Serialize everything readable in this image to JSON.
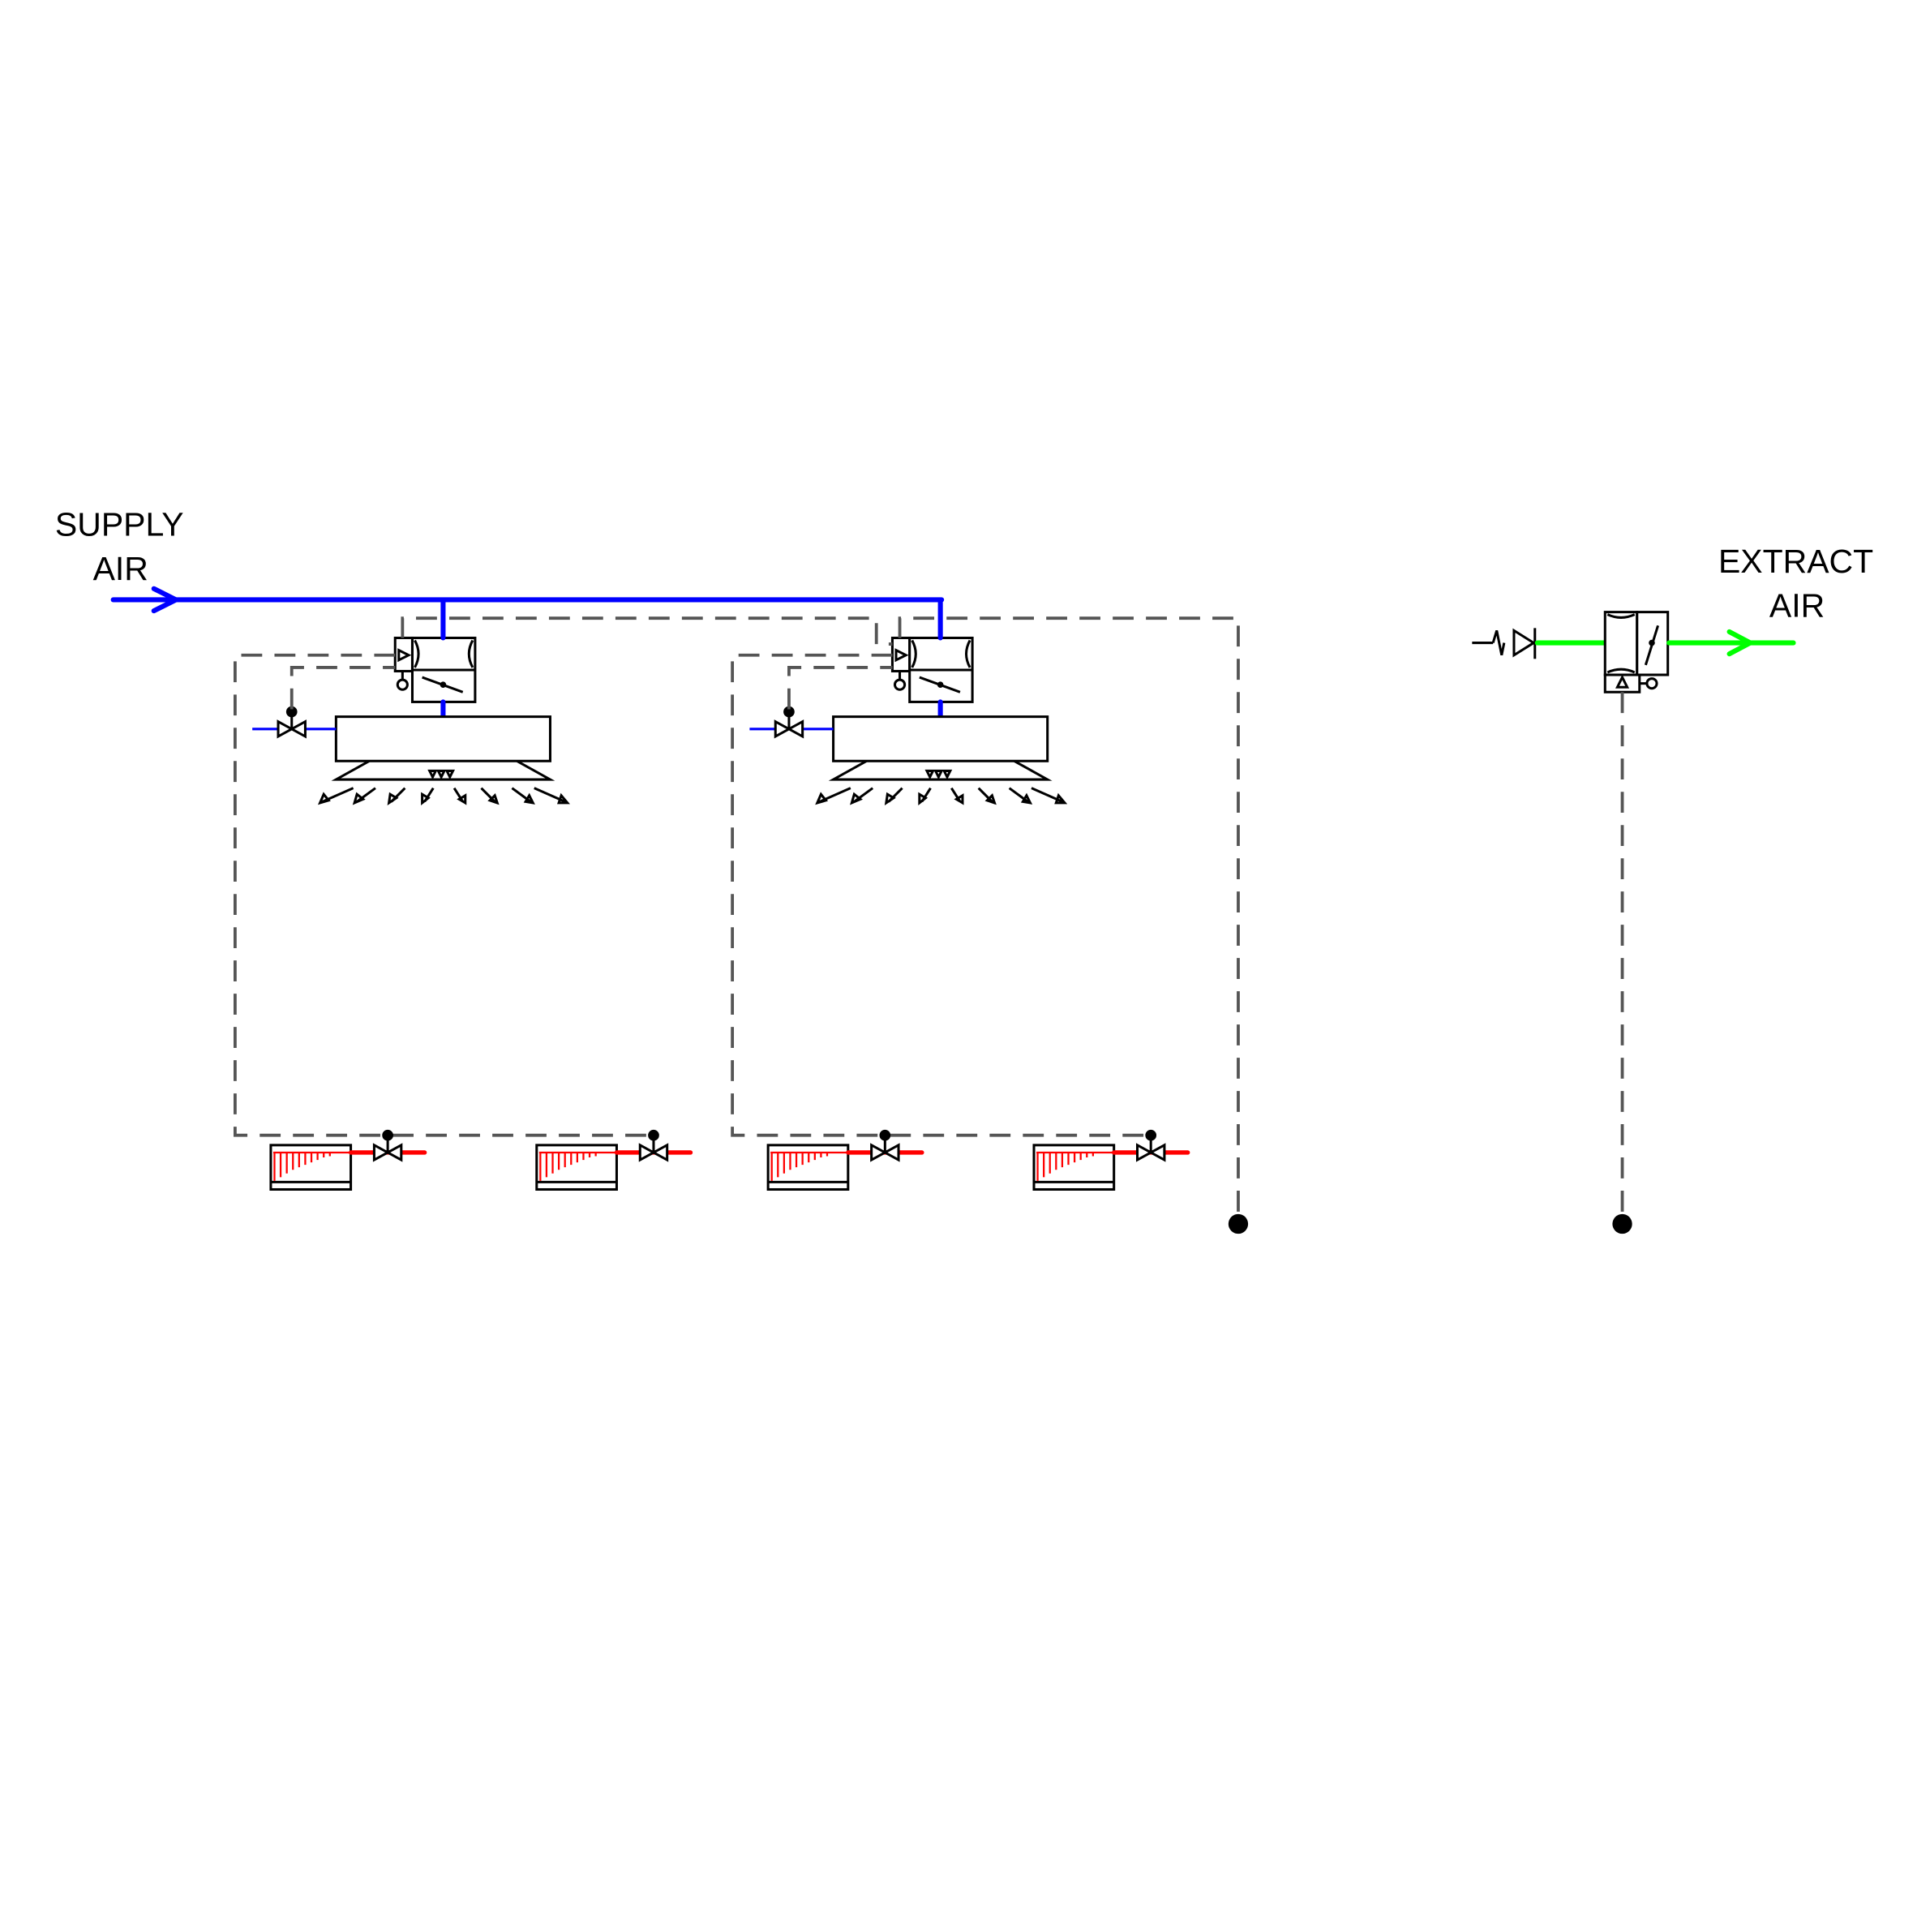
{
  "labels": {
    "supply_line1": "SUPPLY",
    "supply_line2": "AIR",
    "extract_line1": "EXTRACT",
    "extract_line2": "AIR"
  },
  "colors": {
    "supply_air": "#0000ff",
    "heating": "#ff0000",
    "extract_air": "#00ff00",
    "control_signal": "#555555"
  }
}
